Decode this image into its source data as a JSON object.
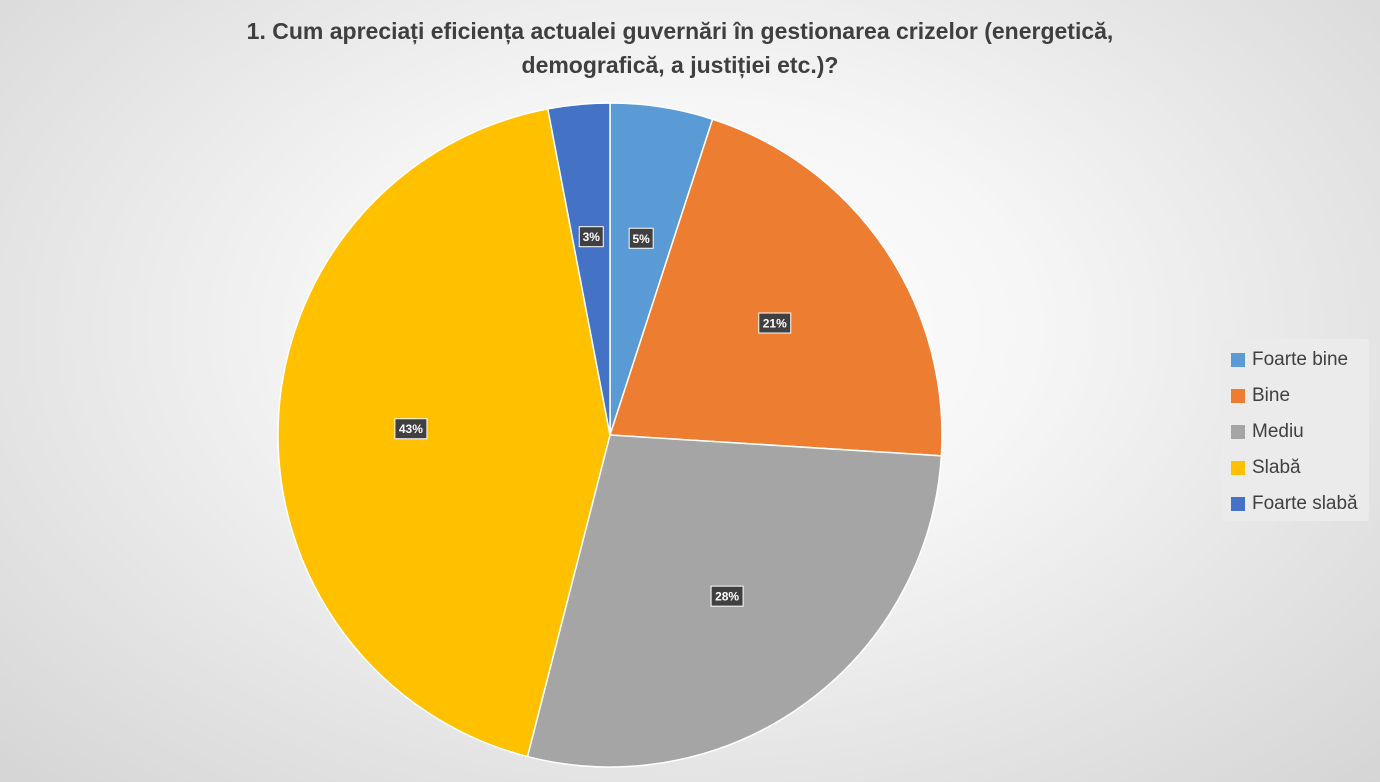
{
  "chart_data": {
    "type": "pie",
    "title_lines": [
      "1. Cum apreciați eficiența actualei guvernări în gestionarea crizelor (energetică,",
      "demografică, a justiției etc.)?"
    ],
    "categories": [
      "Foarte bine",
      "Bine",
      "Mediu",
      "Slabă",
      "Foarte slabă"
    ],
    "values": [
      5,
      21,
      28,
      43,
      3
    ],
    "data_labels": [
      "5%",
      "21%",
      "28%",
      "43%",
      "3%"
    ],
    "colors": [
      "#5b9bd5",
      "#ed7d31",
      "#a5a5a5",
      "#ffc000",
      "#4472c4"
    ],
    "start_angle": 0,
    "direction": "clockwise",
    "legend_position": "right"
  }
}
